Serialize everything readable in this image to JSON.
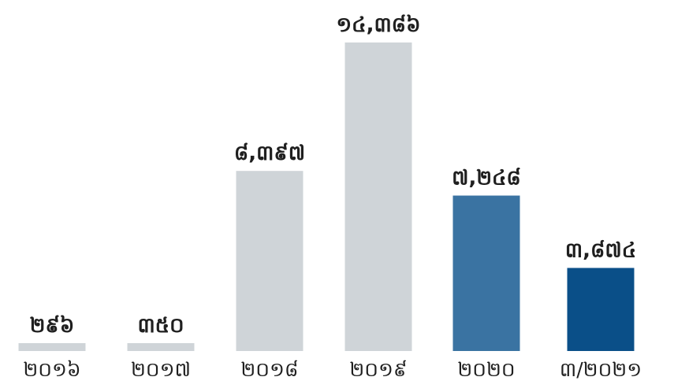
{
  "chart_data": {
    "type": "bar",
    "categories": [
      "២០១៦",
      "២០១៧",
      "២០១៨",
      "២០១៩",
      "២០២០",
      "៣/២០២១"
    ],
    "values": [
      296,
      350,
      8397,
      14386,
      7248,
      3874
    ],
    "value_labels": [
      "២៩៦",
      "៣៥០",
      "៨,៣៩៧",
      "១៤,៣៨៦",
      "៧,២៤៨",
      "៣,៨៧៤"
    ],
    "bar_colors": [
      "#cfd4d8",
      "#cfd4d8",
      "#cfd4d8",
      "#cfd4d8",
      "#3a73a2",
      "#0a4f88"
    ],
    "title": "",
    "xlabel": "",
    "ylabel": "",
    "grid": false,
    "legend": "none"
  }
}
